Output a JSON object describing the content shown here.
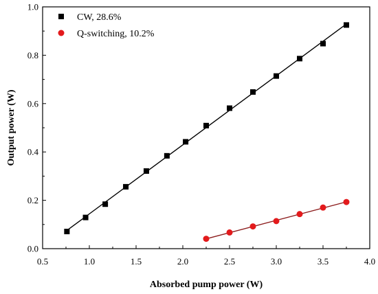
{
  "chart_data": {
    "type": "scatter",
    "xlabel": "Absorbed pump power (W)",
    "ylabel": "Output power (W)",
    "xlim": [
      0.5,
      4.0
    ],
    "ylim": [
      0.0,
      1.0
    ],
    "xticks": [
      "0.5",
      "1.0",
      "1.5",
      "2.0",
      "2.5",
      "3.0",
      "3.5",
      "4.0"
    ],
    "yticks": [
      "0.0",
      "0.2",
      "0.4",
      "0.6",
      "0.8",
      "1.0"
    ],
    "grid": false,
    "legend_position": "top-left",
    "series": [
      {
        "name": "CW, 28.6%",
        "marker": "square",
        "color": "#000000",
        "fit_line_color": "#000000",
        "x": [
          0.76,
          0.96,
          1.17,
          1.39,
          1.61,
          1.83,
          2.03,
          2.25,
          2.5,
          2.75,
          3.0,
          3.25,
          3.5,
          3.75
        ],
        "y": [
          0.071,
          0.129,
          0.184,
          0.256,
          0.321,
          0.384,
          0.442,
          0.509,
          0.581,
          0.648,
          0.714,
          0.786,
          0.848,
          0.925
        ]
      },
      {
        "name": "Q-switching, 10.2%",
        "marker": "circle",
        "color": "#e31a1c",
        "fit_line_color": "#8b1a1a",
        "x": [
          2.25,
          2.5,
          2.75,
          3.0,
          3.25,
          3.5,
          3.75
        ],
        "y": [
          0.041,
          0.067,
          0.092,
          0.114,
          0.143,
          0.17,
          0.193
        ]
      }
    ]
  }
}
